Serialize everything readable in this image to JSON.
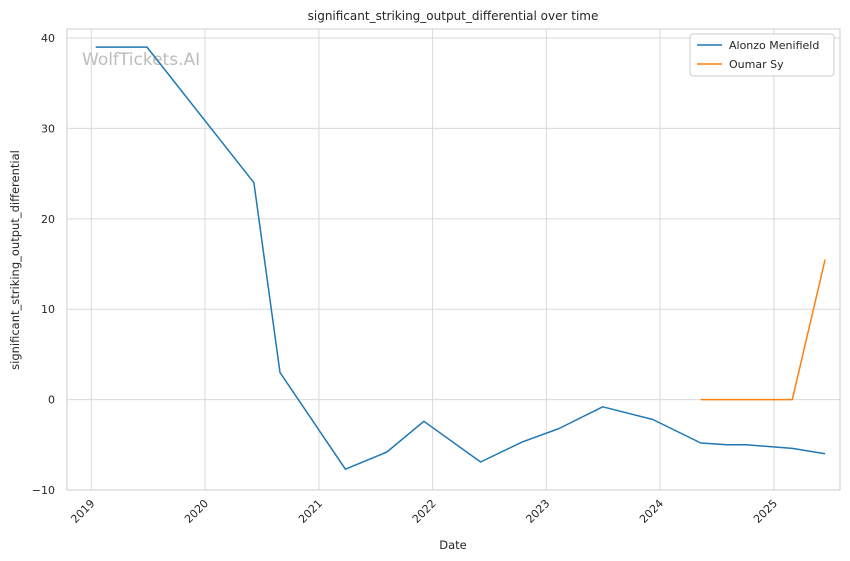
{
  "chart_data": {
    "type": "line",
    "title": "significant_striking_output_differential over time",
    "xlabel": "Date",
    "ylabel": "significant_striking_output_differential",
    "x_ticks": [
      "2019",
      "2020",
      "2021",
      "2022",
      "2023",
      "2024",
      "2025"
    ],
    "y_ticks": [
      "40",
      "30",
      "20",
      "10",
      "0",
      "−10"
    ],
    "y_tick_values": [
      40,
      30,
      20,
      10,
      0,
      -10
    ],
    "xlim": [
      "2018-10-15",
      "2025-08-01"
    ],
    "ylim": [
      -10,
      41
    ],
    "grid": true,
    "legend_position": "top-right",
    "watermark": "WolfTickets.AI",
    "series": [
      {
        "name": "Alonzo Menifield",
        "color": "#1f77b4",
        "points": [
          [
            "2019-01-15",
            39.0
          ],
          [
            "2019-06-29",
            39.0
          ],
          [
            "2020-06-06",
            24.0
          ],
          [
            "2020-08-29",
            3.0
          ],
          [
            "2021-03-27",
            -7.7
          ],
          [
            "2021-08-07",
            -5.8
          ],
          [
            "2021-12-04",
            -2.4
          ],
          [
            "2022-06-04",
            -6.9
          ],
          [
            "2022-10-15",
            -4.7
          ],
          [
            "2023-02-11",
            -3.2
          ],
          [
            "2023-07-01",
            -0.8
          ],
          [
            "2023-12-09",
            -2.2
          ],
          [
            "2024-05-11",
            -4.8
          ],
          [
            "2024-08-03",
            -5.0
          ],
          [
            "2024-10-05",
            -5.0
          ],
          [
            "2025-03-01",
            -5.4
          ],
          [
            "2025-06-14",
            -6.0
          ]
        ]
      },
      {
        "name": "Oumar Sy",
        "color": "#ff7f0e",
        "points": [
          [
            "2024-05-11",
            0.0
          ],
          [
            "2025-03-01",
            0.0
          ],
          [
            "2025-06-14",
            15.5
          ]
        ]
      }
    ]
  }
}
